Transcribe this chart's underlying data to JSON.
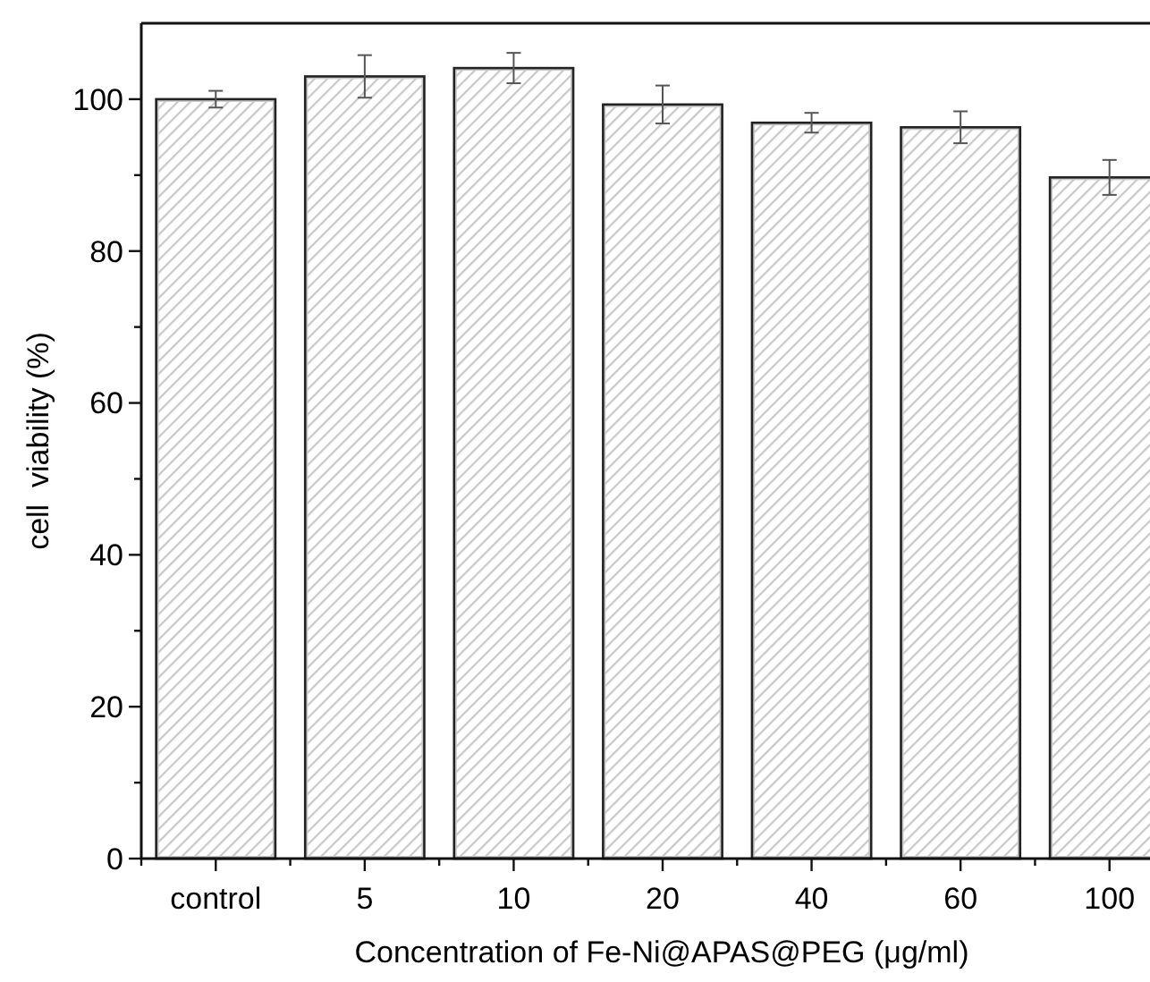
{
  "chart_data": {
    "type": "bar",
    "xlabel": "Concentration of Fe-Ni@APAS@PEG (μg/ml)",
    "ylabel": "cell  viability (%)",
    "categories": [
      "control",
      "5",
      "10",
      "20",
      "40",
      "60",
      "100"
    ],
    "values": [
      100,
      103,
      104.1,
      99.3,
      96.9,
      96.3,
      89.7
    ],
    "errors": [
      1.1,
      2.8,
      2,
      2.5,
      1.3,
      2.1,
      2.3
    ],
    "color": "#c8c8c8",
    "ylim": [
      0,
      110
    ],
    "yticks": [
      0,
      {
        "value": 10,
        "label": null
      },
      20,
      {
        "value": 30,
        "label": null
      },
      40,
      {
        "value": 50,
        "label": null
      },
      60,
      {
        "value": 70,
        "label": null
      },
      80,
      {
        "value": 90,
        "label": null
      },
      100
    ],
    "grid": false
  }
}
